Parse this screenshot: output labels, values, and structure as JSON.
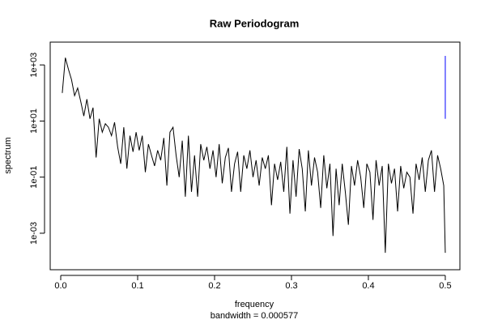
{
  "chart_data": {
    "type": "line",
    "title": "Raw Periodogram",
    "x_label": "frequency",
    "subtitle": "bandwidth = 0.000577",
    "y_label": "spectrum",
    "log_y": true,
    "color": "#000000",
    "xlim": [
      -0.0137,
      0.519
    ],
    "ylim": [
      5e-05,
      6500
    ],
    "xticks": [
      {
        "value": 0,
        "label": "0.0"
      },
      0.1,
      0.2,
      0.3,
      0.4,
      0.5
    ],
    "yticks": [
      {
        "value": 0.001,
        "label": "1e-03"
      },
      {
        "value": 0.1,
        "label": "1e-01"
      },
      {
        "value": 10,
        "label": "1e+01"
      },
      {
        "value": 1000,
        "label": "1e+03"
      }
    ],
    "ci_bar": {
      "x": 0.5,
      "lower": 12,
      "upper": 2100,
      "color": "#0000ff"
    },
    "x": [
      0.002,
      0.006,
      0.01,
      0.014,
      0.018,
      0.022,
      0.026,
      0.03,
      0.034,
      0.038,
      0.042,
      0.046,
      0.05,
      0.054,
      0.058,
      0.062,
      0.066,
      0.07,
      0.074,
      0.078,
      0.082,
      0.086,
      0.09,
      0.094,
      0.098,
      0.102,
      0.106,
      0.11,
      0.114,
      0.118,
      0.122,
      0.126,
      0.13,
      0.134,
      0.138,
      0.142,
      0.146,
      0.15,
      0.154,
      0.158,
      0.162,
      0.166,
      0.17,
      0.174,
      0.178,
      0.182,
      0.186,
      0.19,
      0.194,
      0.198,
      0.202,
      0.206,
      0.21,
      0.214,
      0.218,
      0.222,
      0.226,
      0.23,
      0.234,
      0.238,
      0.242,
      0.246,
      0.25,
      0.254,
      0.258,
      0.262,
      0.266,
      0.27,
      0.274,
      0.278,
      0.282,
      0.286,
      0.29,
      0.294,
      0.298,
      0.302,
      0.306,
      0.31,
      0.314,
      0.318,
      0.322,
      0.326,
      0.33,
      0.334,
      0.338,
      0.342,
      0.346,
      0.35,
      0.354,
      0.358,
      0.362,
      0.366,
      0.37,
      0.374,
      0.378,
      0.382,
      0.386,
      0.39,
      0.394,
      0.398,
      0.402,
      0.406,
      0.41,
      0.414,
      0.418,
      0.422,
      0.426,
      0.43,
      0.434,
      0.438,
      0.442,
      0.446,
      0.45,
      0.454,
      0.458,
      0.462,
      0.466,
      0.47,
      0.474,
      0.478,
      0.482,
      0.486,
      0.49,
      0.494,
      0.498,
      0.5
    ],
    "values": [
      100,
      1800,
      700,
      300,
      80,
      150,
      50,
      15,
      60,
      12,
      30,
      0.5,
      12,
      4,
      8,
      6,
      3,
      9,
      1.2,
      0.3,
      6,
      0.2,
      3,
      0.8,
      4,
      0.9,
      3,
      0.15,
      1.5,
      0.6,
      0.25,
      0.9,
      0.4,
      2.5,
      0.05,
      4,
      6,
      0.6,
      0.1,
      2,
      0.02,
      3,
      0.03,
      0.6,
      0.02,
      1.5,
      0.4,
      1.2,
      0.2,
      0.9,
      0.1,
      1.5,
      0.06,
      0.5,
      1.1,
      0.03,
      0.3,
      0.8,
      0.03,
      0.6,
      0.2,
      0.9,
      0.1,
      0.4,
      0.05,
      0.5,
      0.2,
      0.6,
      0.01,
      0.3,
      0.08,
      0.35,
      0.03,
      1.2,
      0.005,
      0.4,
      0.02,
      1,
      0.2,
      0.006,
      0.9,
      0.05,
      0.5,
      0.15,
      0.008,
      0.6,
      0.04,
      0.3,
      0.0008,
      0.2,
      0.01,
      0.3,
      0.03,
      0.002,
      0.25,
      0.05,
      0.4,
      0.1,
      0.008,
      0.3,
      0.15,
      0.003,
      0.4,
      0.05,
      0.25,
      0.0002,
      0.3,
      0.06,
      0.2,
      0.006,
      0.25,
      0.04,
      0.15,
      0.1,
      0.005,
      0.3,
      0.08,
      0.5,
      0.03,
      0.4,
      0.9,
      0.03,
      0.6,
      0.2,
      0.05,
      0.0002
    ]
  }
}
